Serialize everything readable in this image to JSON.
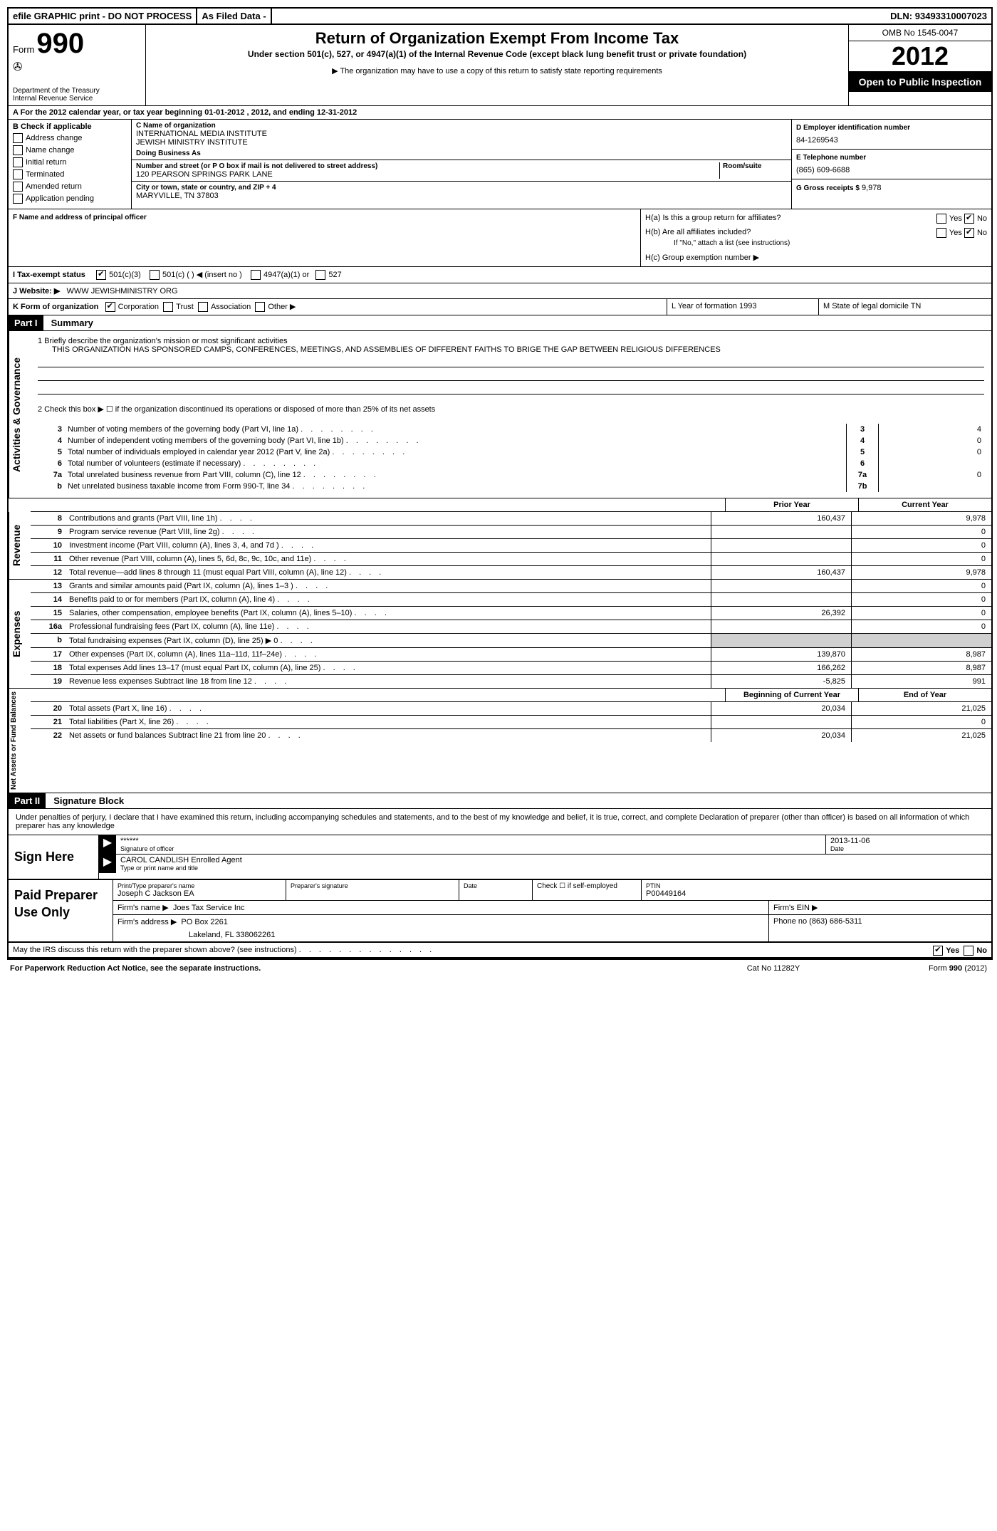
{
  "topbar": {
    "efile": "efile GRAPHIC print - DO NOT PROCESS",
    "asfiled": "As Filed Data -",
    "dln_label": "DLN:",
    "dln": "93493310007023"
  },
  "header": {
    "form_word": "Form",
    "form_num": "990",
    "dept1": "Department of the Treasury",
    "dept2": "Internal Revenue Service",
    "title": "Return of Organization Exempt From Income Tax",
    "subtitle": "Under section 501(c), 527, or 4947(a)(1) of the Internal Revenue Code (except black lung benefit trust or private foundation)",
    "note": "▶ The organization may have to use a copy of this return to satisfy state reporting requirements",
    "omb": "OMB No 1545-0047",
    "year": "2012",
    "open": "Open to Public Inspection"
  },
  "row_a": "A  For the 2012 calendar year, or tax year beginning 01-01-2012     , 2012, and ending 12-31-2012",
  "col_b": {
    "label": "B  Check if applicable",
    "items": [
      "Address change",
      "Name change",
      "Initial return",
      "Terminated",
      "Amended return",
      "Application pending"
    ]
  },
  "col_c": {
    "name_label": "C Name of organization",
    "name1": "INTERNATIONAL MEDIA INSTITUTE",
    "name2": "JEWISH MINISTRY INSTITUTE",
    "dba_label": "Doing Business As",
    "street_label": "Number and street (or P O  box if mail is not delivered to street address)",
    "room_label": "Room/suite",
    "street": "120 PEARSON SPRINGS PARK LANE",
    "city_label": "City or town, state or country, and ZIP + 4",
    "city": "MARYVILLE, TN  37803",
    "f_label": "F  Name and address of principal officer"
  },
  "col_d": {
    "ein_label": "D Employer identification number",
    "ein": "84-1269543",
    "tel_label": "E Telephone number",
    "tel": "(865) 609-6688",
    "gross_label": "G Gross receipts $",
    "gross": "9,978"
  },
  "h": {
    "ha_label": "H(a)  Is this a group return for affiliates?",
    "hb_label": "H(b)  Are all affiliates included?",
    "hb_note": "If \"No,\" attach a list  (see instructions)",
    "hc_label": "H(c)   Group exemption number ▶",
    "yes": "Yes",
    "no": "No"
  },
  "row_i": {
    "label": "I   Tax-exempt status",
    "opts": [
      "501(c)(3)",
      "501(c) (   ) ◀ (insert no )",
      "4947(a)(1) or",
      "527"
    ]
  },
  "row_j": {
    "label": "J  Website: ▶",
    "value": "WWW JEWISHMINISTRY ORG"
  },
  "row_k": {
    "label": "K Form of organization",
    "opts": [
      "Corporation",
      "Trust",
      "Association",
      "Other ▶"
    ],
    "l_label": "L Year of formation  1993",
    "m_label": "M State of legal domicile  TN"
  },
  "part1": {
    "header": "Part I",
    "title": "Summary",
    "vert": "Activities & Governance",
    "l1_label": "1   Briefly describe the organization's mission or most significant activities",
    "l1_text": "THIS ORGANIZATION HAS SPONSORED CAMPS, CONFERENCES, MEETINGS, AND ASSEMBLIES OF DIFFERENT FAITHS TO BRIGE THE GAP BETWEEN RELIGIOUS DIFFERENCES",
    "l2": "2   Check this box ▶ ☐ if the organization discontinued its operations or disposed of more than 25% of its net assets",
    "rows": [
      {
        "n": "3",
        "d": "Number of voting members of the governing body (Part VI, line 1a)",
        "box": "3",
        "v": "4"
      },
      {
        "n": "4",
        "d": "Number of independent voting members of the governing body (Part VI, line 1b)",
        "box": "4",
        "v": "0"
      },
      {
        "n": "5",
        "d": "Total number of individuals employed in calendar year 2012 (Part V, line 2a)",
        "box": "5",
        "v": "0"
      },
      {
        "n": "6",
        "d": "Total number of volunteers (estimate if necessary)",
        "box": "6",
        "v": ""
      },
      {
        "n": "7a",
        "d": "Total unrelated business revenue from Part VIII, column (C), line 12",
        "box": "7a",
        "v": "0"
      },
      {
        "n": "b",
        "d": "Net unrelated business taxable income from Form 990-T, line 34",
        "box": "7b",
        "v": ""
      }
    ]
  },
  "fin_headers": {
    "prior": "Prior Year",
    "current": "Current Year"
  },
  "revenue": {
    "vert": "Revenue",
    "rows": [
      {
        "n": "8",
        "d": "Contributions and grants (Part VIII, line 1h)",
        "p": "160,437",
        "c": "9,978"
      },
      {
        "n": "9",
        "d": "Program service revenue (Part VIII, line 2g)",
        "p": "",
        "c": "0"
      },
      {
        "n": "10",
        "d": "Investment income (Part VIII, column (A), lines 3, 4, and 7d )",
        "p": "",
        "c": "0"
      },
      {
        "n": "11",
        "d": "Other revenue (Part VIII, column (A), lines 5, 6d, 8c, 9c, 10c, and 11e)",
        "p": "",
        "c": "0"
      },
      {
        "n": "12",
        "d": "Total revenue—add lines 8 through 11 (must equal Part VIII, column (A), line 12)",
        "p": "160,437",
        "c": "9,978"
      }
    ]
  },
  "expenses": {
    "vert": "Expenses",
    "rows": [
      {
        "n": "13",
        "d": "Grants and similar amounts paid (Part IX, column (A), lines 1–3 )",
        "p": "",
        "c": "0"
      },
      {
        "n": "14",
        "d": "Benefits paid to or for members (Part IX, column (A), line 4)",
        "p": "",
        "c": "0"
      },
      {
        "n": "15",
        "d": "Salaries, other compensation, employee benefits (Part IX, column (A), lines 5–10)",
        "p": "26,392",
        "c": "0"
      },
      {
        "n": "16a",
        "d": "Professional fundraising fees (Part IX, column (A), line 11e)",
        "p": "",
        "c": "0"
      },
      {
        "n": "b",
        "d": "Total fundraising expenses (Part IX, column (D), line 25) ▶ 0",
        "p": "shade",
        "c": "shade"
      },
      {
        "n": "17",
        "d": "Other expenses (Part IX, column (A), lines 11a–11d, 11f–24e)",
        "p": "139,870",
        "c": "8,987"
      },
      {
        "n": "18",
        "d": "Total expenses  Add lines 13–17 (must equal Part IX, column (A), line 25)",
        "p": "166,262",
        "c": "8,987"
      },
      {
        "n": "19",
        "d": "Revenue less expenses  Subtract line 18 from line 12",
        "p": "-5,825",
        "c": "991"
      }
    ]
  },
  "netassets": {
    "vert": "Net Assets or Fund Balances",
    "h1": "Beginning of Current Year",
    "h2": "End of Year",
    "rows": [
      {
        "n": "20",
        "d": "Total assets (Part X, line 16)",
        "p": "20,034",
        "c": "21,025"
      },
      {
        "n": "21",
        "d": "Total liabilities (Part X, line 26)",
        "p": "",
        "c": "0"
      },
      {
        "n": "22",
        "d": "Net assets or fund balances  Subtract line 21 from line 20",
        "p": "20,034",
        "c": "21,025"
      }
    ]
  },
  "part2": {
    "header": "Part II",
    "title": "Signature Block",
    "declaration": "Under penalties of perjury, I declare that I have examined this return, including accompanying schedules and statements, and to the best of my knowledge and belief, it is true, correct, and complete  Declaration of preparer (other than officer) is based on all information of which preparer has any knowledge"
  },
  "sign": {
    "label": "Sign Here",
    "stars": "******",
    "date": "2013-11-06",
    "sig_label": "Signature of officer",
    "date_label": "Date",
    "name": "CAROL CANDLISH Enrolled Agent",
    "name_label": "Type or print name and title"
  },
  "preparer": {
    "label": "Paid Preparer Use Only",
    "name_label": "Print/Type preparer's name",
    "name": "Joseph C Jackson EA",
    "sig_label": "Preparer's signature",
    "date_label": "Date",
    "check_label": "Check ☐ if self-employed",
    "ptin_label": "PTIN",
    "ptin": "P00449164",
    "firm_name_label": "Firm's name    ▶",
    "firm_name": "Joes Tax Service Inc",
    "firm_ein_label": "Firm's EIN ▶",
    "firm_addr_label": "Firm's address ▶",
    "firm_addr1": "PO Box 2261",
    "firm_addr2": "Lakeland, FL  338062261",
    "phone_label": "Phone no  (863) 686-5311"
  },
  "discuss": {
    "text": "May the IRS discuss this return with the preparer shown above? (see instructions)",
    "yes": "Yes",
    "no": "No"
  },
  "footer": {
    "l": "For Paperwork Reduction Act Notice, see the separate instructions.",
    "m": "Cat No  11282Y",
    "r": "Form 990 (2012)"
  }
}
